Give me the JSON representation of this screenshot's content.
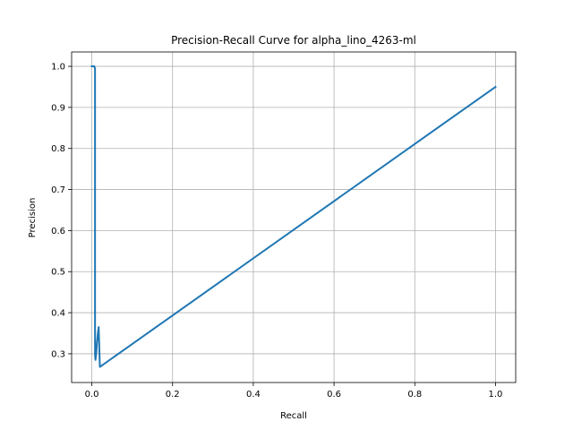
{
  "chart_data": {
    "type": "line",
    "title": "Precision-Recall Curve for alpha_lino_4263-ml",
    "xlabel": "Recall",
    "ylabel": "Precision",
    "xlim": [
      -0.05,
      1.05
    ],
    "ylim": [
      0.23,
      1.035
    ],
    "grid": true,
    "line_color": "#1f77b4",
    "x_ticks": [
      0.0,
      0.2,
      0.4,
      0.6,
      0.8,
      1.0
    ],
    "x_tick_labels": [
      "0.0",
      "0.2",
      "0.4",
      "0.6",
      "0.8",
      "1.0"
    ],
    "y_ticks": [
      0.3,
      0.4,
      0.5,
      0.6,
      0.7,
      0.8,
      0.9,
      1.0
    ],
    "y_tick_labels": [
      "0.3",
      "0.4",
      "0.5",
      "0.6",
      "0.7",
      "0.8",
      "0.9",
      "1.0"
    ],
    "series": [
      {
        "x": [
          0.0,
          0.003,
          0.006,
          0.008,
          0.008,
          0.009,
          0.011,
          0.013,
          0.015,
          0.017,
          0.019,
          0.02,
          1.0
        ],
        "y": [
          1.0,
          1.0,
          1.0,
          0.995,
          0.3,
          0.285,
          0.3,
          0.33,
          0.35,
          0.365,
          0.3,
          0.268,
          0.95
        ]
      }
    ]
  }
}
